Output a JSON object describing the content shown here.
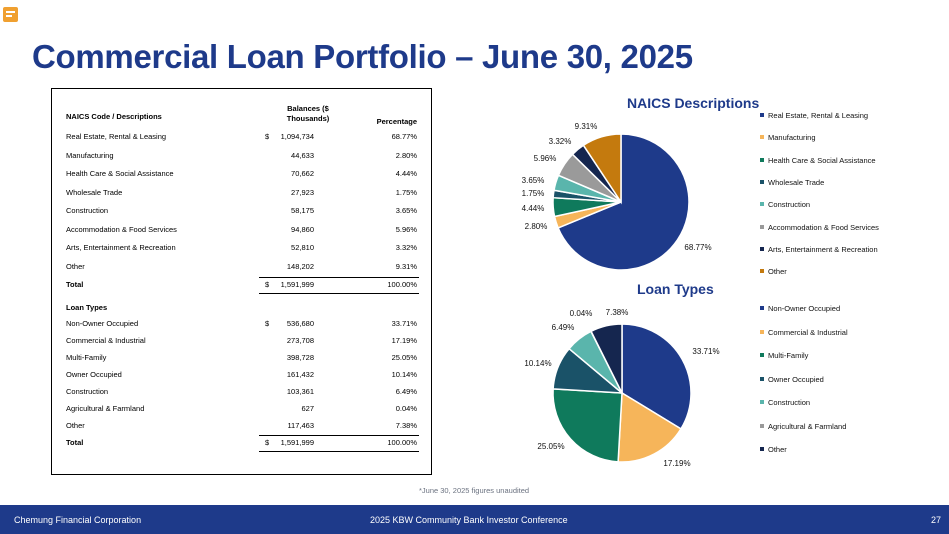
{
  "title": "Commercial Loan Portfolio – June 30, 2025",
  "table": {
    "headers": {
      "desc": "NAICS Code / Descriptions",
      "balance": "Balances ($ Thousands)",
      "percentage": "Percentage"
    },
    "naics_rows": [
      {
        "desc": "Real Estate, Rental & Leasing",
        "cur": "$",
        "bal": "1,094,734",
        "pct": "68.77%"
      },
      {
        "desc": "Manufacturing",
        "cur": "",
        "bal": "44,633",
        "pct": "2.80%"
      },
      {
        "desc": "Health Care & Social Assistance",
        "cur": "",
        "bal": "70,662",
        "pct": "4.44%"
      },
      {
        "desc": "Wholesale Trade",
        "cur": "",
        "bal": "27,923",
        "pct": "1.75%"
      },
      {
        "desc": "Construction",
        "cur": "",
        "bal": "58,175",
        "pct": "3.65%"
      },
      {
        "desc": "Accommodation & Food Services",
        "cur": "",
        "bal": "94,860",
        "pct": "5.96%"
      },
      {
        "desc": "Arts, Entertainment & Recreation",
        "cur": "",
        "bal": "52,810",
        "pct": "3.32%"
      },
      {
        "desc": "Other",
        "cur": "",
        "bal": "148,202",
        "pct": "9.31%"
      },
      {
        "desc": "Total",
        "cur": "$",
        "bal": "1,591,999",
        "pct": "100.00%"
      }
    ],
    "loan_types_label": "Loan Types",
    "loan_rows": [
      {
        "desc": "Non-Owner Occupied",
        "cur": "$",
        "bal": "536,680",
        "pct": "33.71%"
      },
      {
        "desc": "Commercial & Industrial",
        "cur": "",
        "bal": "273,708",
        "pct": "17.19%"
      },
      {
        "desc": "Multi-Family",
        "cur": "",
        "bal": "398,728",
        "pct": "25.05%"
      },
      {
        "desc": "Owner Occupied",
        "cur": "",
        "bal": "161,432",
        "pct": "10.14%"
      },
      {
        "desc": "Construction",
        "cur": "",
        "bal": "103,361",
        "pct": "6.49%"
      },
      {
        "desc": "Agricultural & Farmland",
        "cur": "",
        "bal": "627",
        "pct": "0.04%"
      },
      {
        "desc": "Other",
        "cur": "",
        "bal": "117,463",
        "pct": "7.38%"
      },
      {
        "desc": "Total",
        "cur": "$",
        "bal": "1,591,999",
        "pct": "100.00%"
      }
    ]
  },
  "footnote": "*June 30, 2025 figures unaudited",
  "footer": {
    "left": "Chemung Financial Corporation",
    "center": "2025 KBW Community Bank Investor Conference",
    "page": "27"
  },
  "chart_data": [
    {
      "type": "pie",
      "title": "NAICS Descriptions",
      "categories": [
        "Real Estate, Rental & Leasing",
        "Manufacturing",
        "Health Care & Social Assistance",
        "Wholesale Trade",
        "Construction",
        "Accommodation & Food Services",
        "Arts, Entertainment & Recreation",
        "Other"
      ],
      "values": [
        68.77,
        2.8,
        4.44,
        1.75,
        3.65,
        5.96,
        3.32,
        9.31
      ],
      "data_labels": [
        "68.77%",
        "2.80%",
        "4.44%",
        "1.75%",
        "3.65%",
        "5.96%",
        "3.32%",
        "9.31%"
      ],
      "colors": [
        "#1e3a8a",
        "#f6b55a",
        "#0f7a5c",
        "#1a5268",
        "#5ab5ac",
        "#9a9a9a",
        "#15264f",
        "#c47a0e"
      ],
      "legend_position": "right"
    },
    {
      "type": "pie",
      "title": "Loan Types",
      "categories": [
        "Non-Owner Occupied",
        "Commercial & Industrial",
        "Multi-Family",
        "Owner Occupied",
        "Construction",
        "Agricultural & Farmland",
        "Other"
      ],
      "values": [
        33.71,
        17.19,
        25.05,
        10.14,
        6.49,
        0.04,
        7.38
      ],
      "data_labels": [
        "33.71%",
        "17.19%",
        "25.05%",
        "10.14%",
        "6.49%",
        "0.04%",
        "7.38%"
      ],
      "colors": [
        "#1e3a8a",
        "#f6b55a",
        "#0f7a5c",
        "#1a5268",
        "#5ab5ac",
        "#9a9a9a",
        "#15264f"
      ],
      "legend_position": "right"
    }
  ]
}
